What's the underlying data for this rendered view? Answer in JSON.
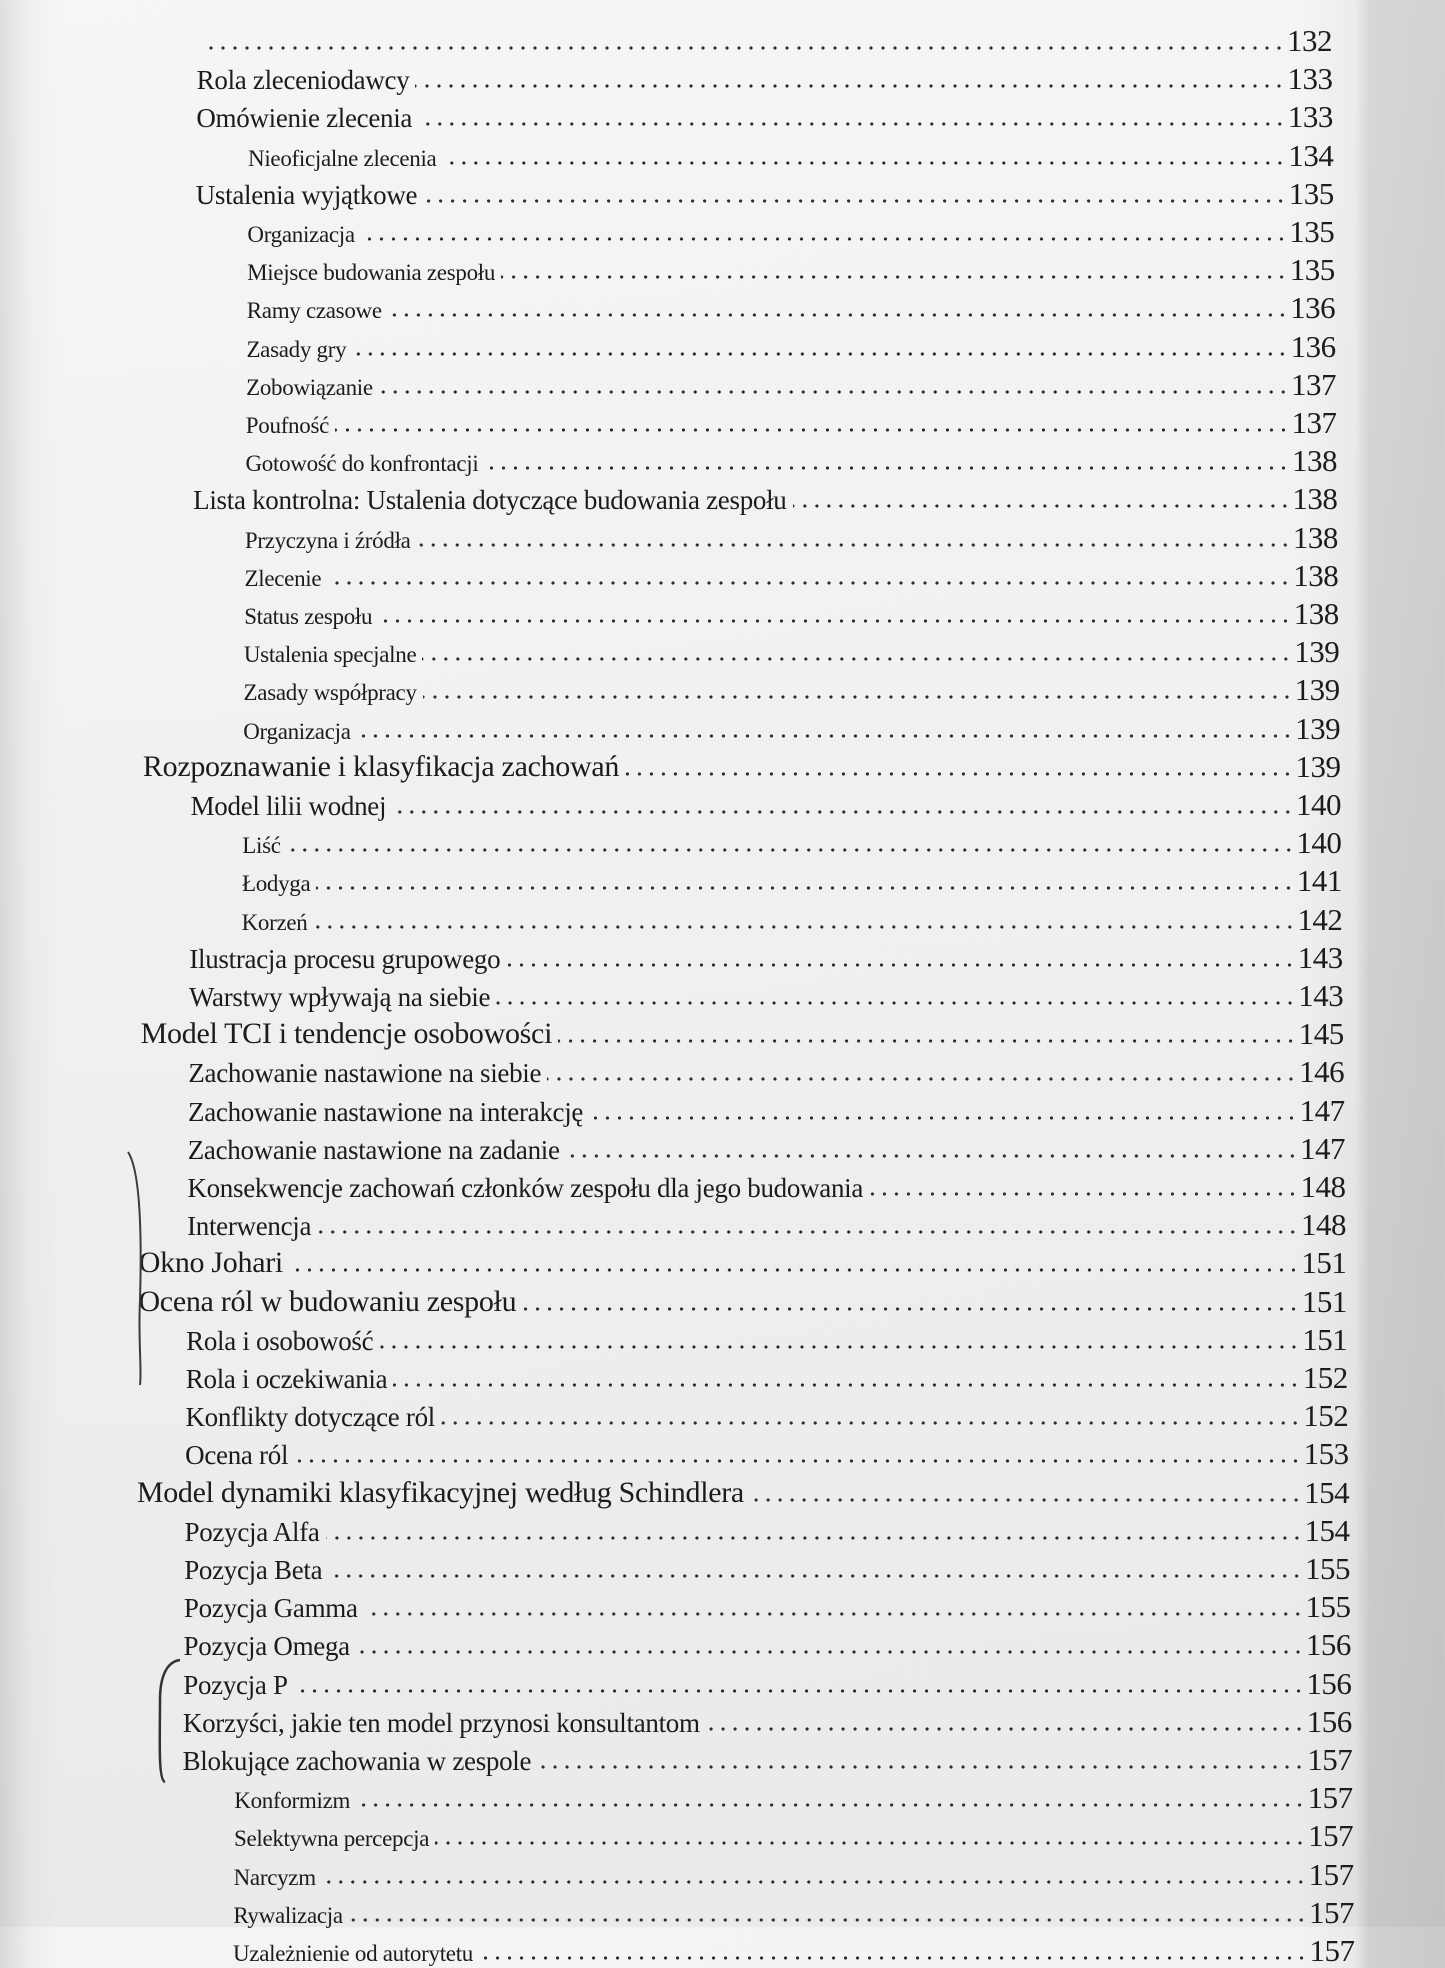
{
  "toc": {
    "entries": [
      {
        "text": "",
        "page": "132",
        "level": 2
      },
      {
        "text": "Rola zleceniodawcy",
        "page": "133",
        "level": 2
      },
      {
        "text": "Omówienie zlecenia",
        "page": "133",
        "level": 2
      },
      {
        "text": "Nieoficjalne zlecenia",
        "page": "134",
        "level": 3
      },
      {
        "text": "Ustalenia wyjątkowe",
        "page": "135",
        "level": 2
      },
      {
        "text": "Organizacja",
        "page": "135",
        "level": 3
      },
      {
        "text": "Miejsce budowania zespołu",
        "page": "135",
        "level": 3
      },
      {
        "text": "Ramy czasowe",
        "page": "136",
        "level": 3
      },
      {
        "text": "Zasady gry",
        "page": "136",
        "level": 3
      },
      {
        "text": "Zobowiązanie",
        "page": "137",
        "level": 3
      },
      {
        "text": "Poufność",
        "page": "137",
        "level": 3
      },
      {
        "text": "Gotowość do konfrontacji",
        "page": "138",
        "level": 3
      },
      {
        "text": "Lista kontrolna: Ustalenia dotyczące budowania zespołu",
        "page": "138",
        "level": 2
      },
      {
        "text": "Przyczyna i źródła",
        "page": "138",
        "level": 3
      },
      {
        "text": "Zlecenie",
        "page": "138",
        "level": 3
      },
      {
        "text": "Status zespołu",
        "page": "138",
        "level": 3
      },
      {
        "text": "Ustalenia specjalne",
        "page": "139",
        "level": 3
      },
      {
        "text": "Zasady współpracy",
        "page": "139",
        "level": 3
      },
      {
        "text": "Organizacja",
        "page": "139",
        "level": 3
      },
      {
        "text": "Rozpoznawanie i klasyfikacja zachowań",
        "page": "139",
        "level": 1
      },
      {
        "text": "Model lilii wodnej",
        "page": "140",
        "level": 2
      },
      {
        "text": "Liść",
        "page": "140",
        "level": 3
      },
      {
        "text": "Łodyga",
        "page": "141",
        "level": 3
      },
      {
        "text": "Korzeń",
        "page": "142",
        "level": 3
      },
      {
        "text": "Ilustracja procesu grupowego",
        "page": "143",
        "level": 2
      },
      {
        "text": "Warstwy wpływają na siebie",
        "page": "143",
        "level": 2
      },
      {
        "text": "Model TCI i tendencje osobowości",
        "page": "145",
        "level": 1
      },
      {
        "text": "Zachowanie nastawione na siebie",
        "page": "146",
        "level": 2
      },
      {
        "text": "Zachowanie nastawione na interakcję",
        "page": "147",
        "level": 2
      },
      {
        "text": "Zachowanie nastawione na zadanie",
        "page": "147",
        "level": 2
      },
      {
        "text": "Konsekwencje zachowań członków zespołu dla jego budowania",
        "page": "148",
        "level": 2
      },
      {
        "text": "Interwencja",
        "page": "148",
        "level": 2
      },
      {
        "text": "Okno Johari",
        "page": "151",
        "level": 1
      },
      {
        "text": "Ocena ról w budowaniu zespołu",
        "page": "151",
        "level": 1
      },
      {
        "text": "Rola i osobowość",
        "page": "151",
        "level": 2
      },
      {
        "text": "Rola i oczekiwania",
        "page": "152",
        "level": 2
      },
      {
        "text": "Konflikty dotyczące ról",
        "page": "152",
        "level": 2
      },
      {
        "text": "Ocena ról",
        "page": "153",
        "level": 2
      },
      {
        "text": "Model dynamiki klasyfikacyjnej według Schindlera",
        "page": "154",
        "level": 1
      },
      {
        "text": "Pozycja Alfa",
        "page": "154",
        "level": 2
      },
      {
        "text": "Pozycja Beta",
        "page": "155",
        "level": 2
      },
      {
        "text": "Pozycja Gamma",
        "page": "155",
        "level": 2
      },
      {
        "text": "Pozycja Omega",
        "page": "156",
        "level": 2
      },
      {
        "text": "Pozycja P",
        "page": "156",
        "level": 2
      },
      {
        "text": "Korzyści, jakie ten model przynosi konsultantom",
        "page": "156",
        "level": 2
      },
      {
        "text": "Blokujące zachowania w zespole",
        "page": "157",
        "level": 2
      },
      {
        "text": "Konformizm",
        "page": "157",
        "level": 3
      },
      {
        "text": "Selektywna percepcja",
        "page": "157",
        "level": 3
      },
      {
        "text": "Narcyzm",
        "page": "157",
        "level": 3
      },
      {
        "text": "Rywalizacja",
        "page": "157",
        "level": 3
      },
      {
        "text": "Uzależnienie od autorytetu",
        "page": "157",
        "level": 3
      }
    ]
  }
}
